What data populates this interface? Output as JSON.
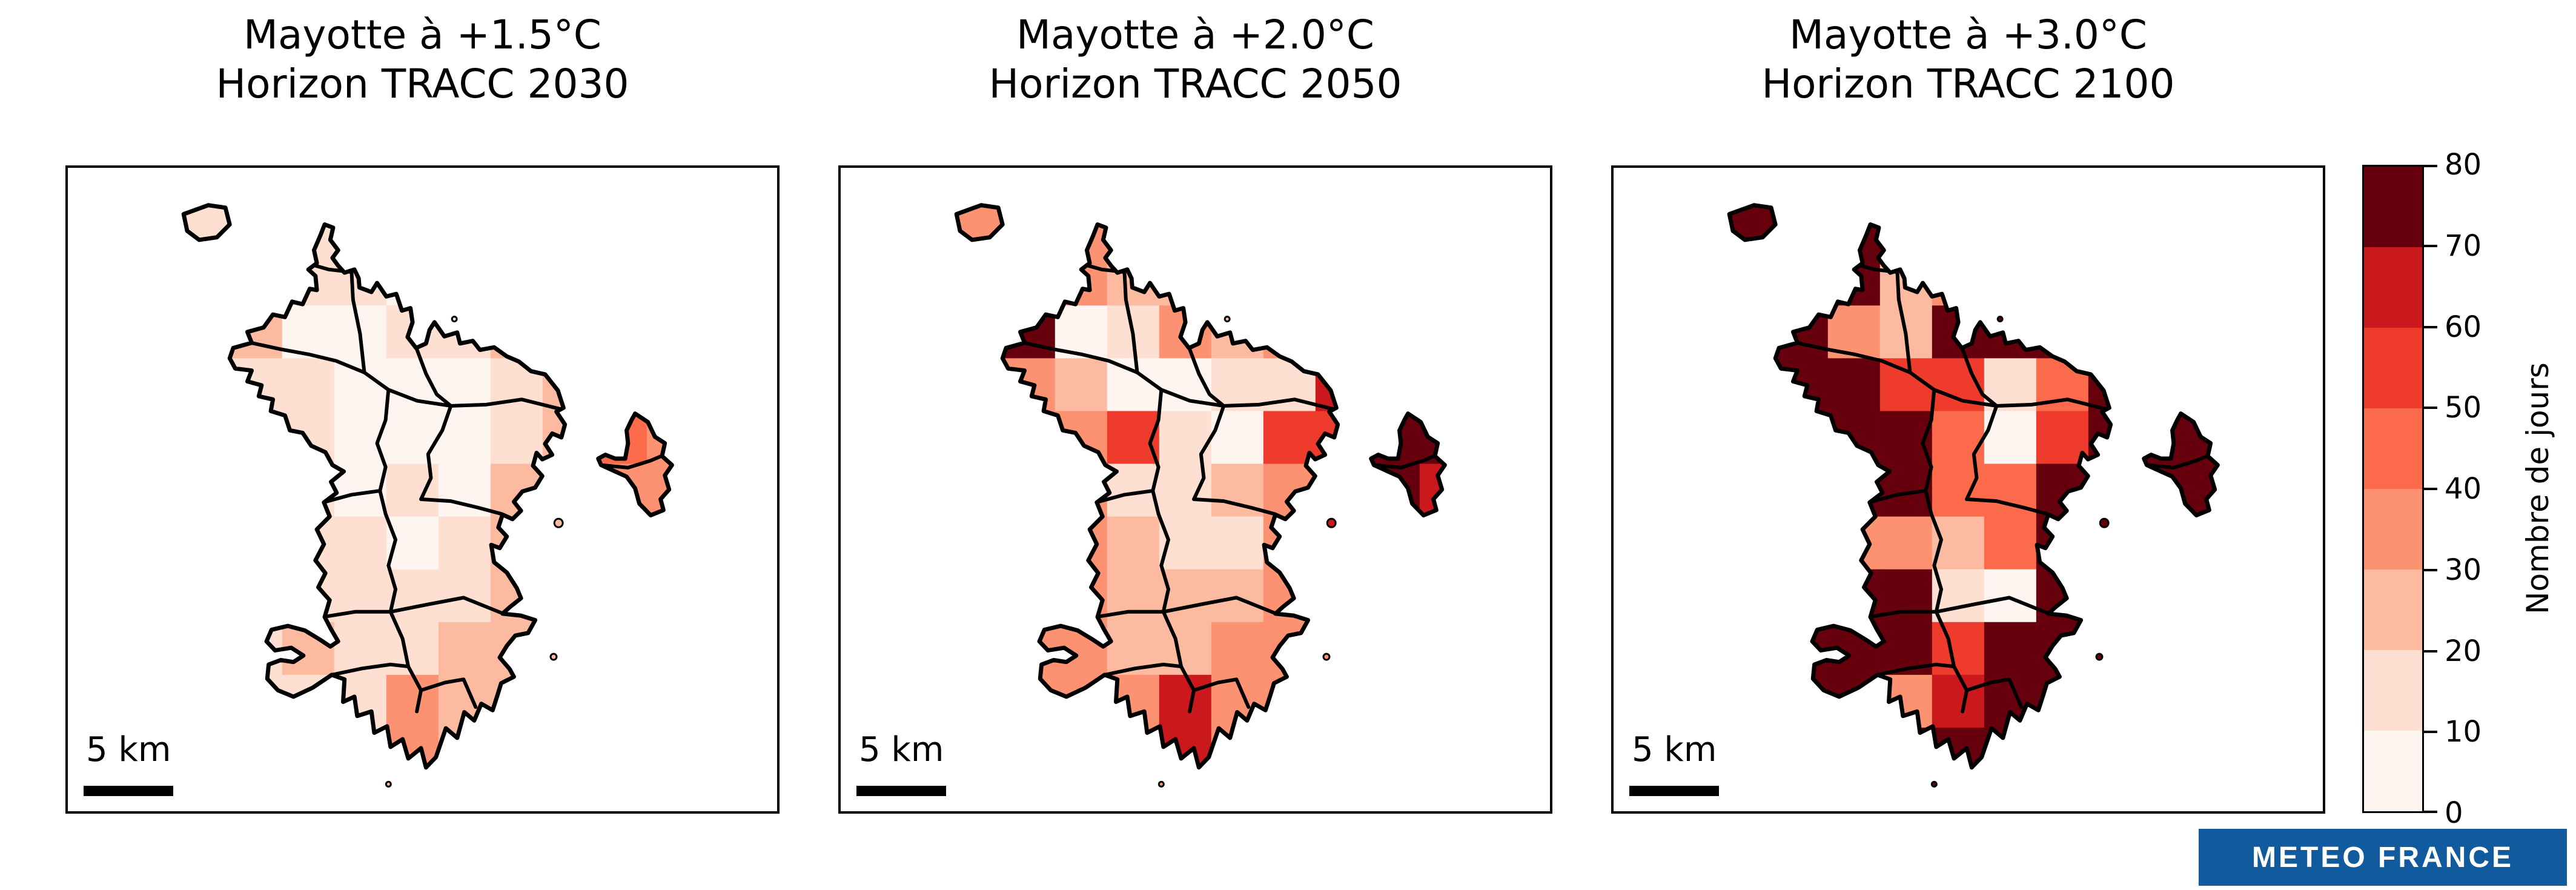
{
  "chart_data": {
    "type": "heatmap",
    "subtype": "gridded-choropleth-map-small-multiples",
    "region": "Mayotte",
    "title": "",
    "legend_position": "right",
    "units": "jours",
    "panels": [
      {
        "title": "Mayotte à +1.5°C",
        "subtitle": "Horizon TRACC 2030",
        "warming_level_c": 1.5,
        "horizon_year": 2030,
        "scale_bar_label": "5 km",
        "grid_rows": [
          "1111011111",
          "1111011111",
          "1200112111",
          "1110001221",
          "1110001243",
          "1110102233",
          "1111012211",
          "1111112211",
          "1121122222",
          "1111322111",
          "1111322111",
          "1111222111"
        ]
      },
      {
        "title": "Mayotte à +2.0°C",
        "subtitle": "Horizon TRACC 2050",
        "warming_level_c": 2.0,
        "horizon_year": 2050,
        "scale_bar_label": "5 km",
        "grid_rows": [
          "3333223333",
          "3332233333",
          "3701323533",
          "3320011633",
          "3335105577",
          "3331123676",
          "3332113633",
          "3332223333",
          "3332233333",
          "3333633333",
          "3333633333",
          "3333333333"
        ]
      },
      {
        "title": "Mayotte à +3.0°C",
        "subtitle": "Horizon TRACC 2100",
        "warming_level_c": 3.0,
        "horizon_year": 2100,
        "scale_bar_label": "5 km",
        "grid_rows": [
          "7777777777",
          "7772377777",
          "7732777777",
          "7775514777",
          "7777405777",
          "7777447777",
          "7733247777",
          "7777107777",
          "7777577777",
          "7773677777",
          "7777777777",
          "7777777777"
        ]
      }
    ],
    "value_bins": [
      0,
      10,
      20,
      30,
      40,
      50,
      60,
      70,
      80
    ],
    "bin_colors": [
      "#fff5f0",
      "#fee0d2",
      "#fcbba1",
      "#fc9272",
      "#fb6a4a",
      "#ef3b2c",
      "#cb181d",
      "#67000d"
    ],
    "colorbar": {
      "label": "Nombre de jours",
      "ticks": [
        0,
        10,
        20,
        30,
        40,
        50,
        60,
        70,
        80
      ],
      "min": 0,
      "max": 80
    }
  },
  "branding": {
    "logo_text": "METEO FRANCE",
    "logo_bg": "#115a9e",
    "logo_fg": "#ffffff"
  }
}
